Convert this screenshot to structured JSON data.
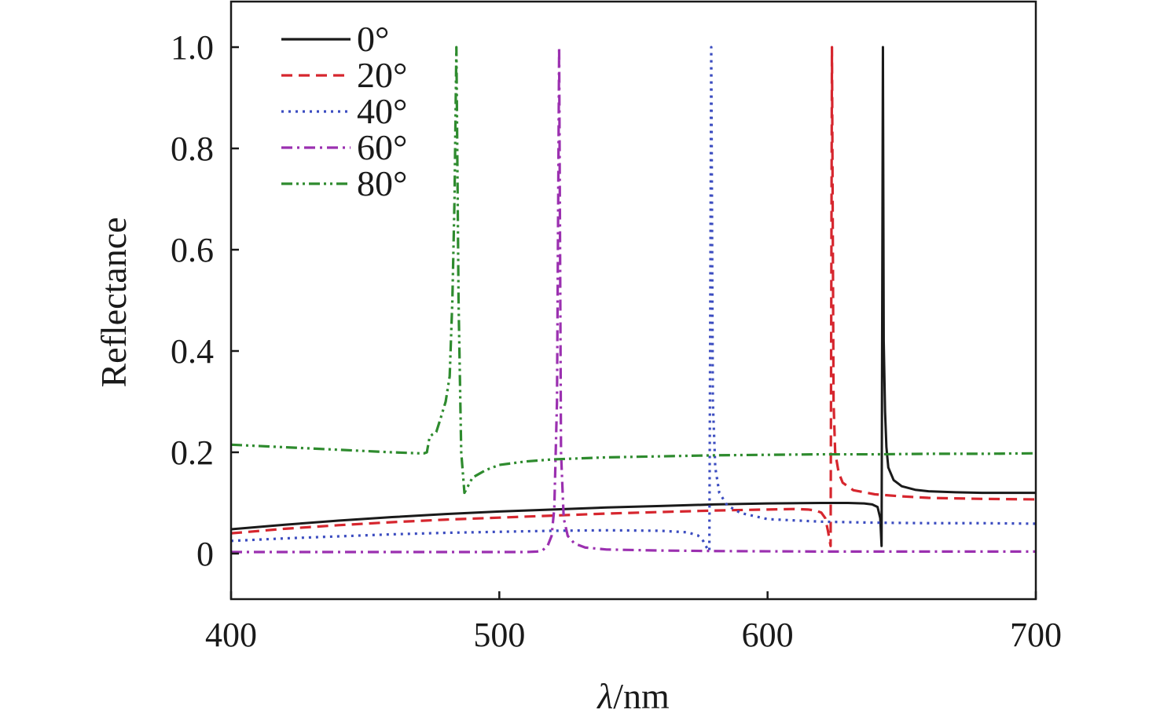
{
  "chart_data": {
    "type": "line",
    "title": "",
    "xlabel_italic": "λ",
    "xlabel_unit": "/nm",
    "ylabel": "Reflectance",
    "xlim": [
      400,
      700
    ],
    "ylim": [
      -0.09,
      1.09
    ],
    "xticks": [
      400,
      500,
      600,
      700
    ],
    "xtick_labels": [
      "400",
      "500",
      "600",
      "700"
    ],
    "yticks": [
      0,
      0.2,
      0.4,
      0.6,
      0.8,
      1.0
    ],
    "ytick_labels": [
      "0",
      "0.2",
      "0.4",
      "0.6",
      "0.8",
      "1.0"
    ],
    "grid": false,
    "legend_position": "top-left",
    "series": [
      {
        "name": "0°",
        "color": "#1a1a1a",
        "dash": "solid",
        "x": [
          400,
          420,
          440,
          460,
          480,
          500,
          520,
          540,
          560,
          580,
          600,
          620,
          630,
          636,
          639,
          641,
          642,
          642.5,
          643,
          643.3,
          643.8,
          644.3,
          645,
          647,
          650,
          655,
          660,
          670,
          680,
          690,
          700
        ],
        "y": [
          0.048,
          0.057,
          0.065,
          0.072,
          0.078,
          0.083,
          0.087,
          0.091,
          0.094,
          0.097,
          0.099,
          0.1,
          0.1,
          0.099,
          0.097,
          0.092,
          0.07,
          0.015,
          1.0,
          0.42,
          0.28,
          0.21,
          0.17,
          0.145,
          0.133,
          0.126,
          0.123,
          0.121,
          0.12,
          0.12,
          0.12
        ]
      },
      {
        "name": "20°",
        "color": "#d6262e",
        "dash": "dashed",
        "x": [
          400,
          420,
          440,
          460,
          480,
          500,
          520,
          540,
          560,
          580,
          600,
          610,
          615,
          618,
          620,
          621.5,
          622.5,
          623.5,
          624,
          624.6,
          625.2,
          626.5,
          628,
          632,
          640,
          650,
          660,
          680,
          700
        ],
        "y": [
          0.04,
          0.049,
          0.056,
          0.062,
          0.067,
          0.071,
          0.075,
          0.079,
          0.082,
          0.085,
          0.087,
          0.088,
          0.087,
          0.085,
          0.081,
          0.07,
          0.045,
          0.015,
          1.0,
          0.3,
          0.2,
          0.16,
          0.14,
          0.125,
          0.117,
          0.113,
          0.11,
          0.108,
          0.107
        ]
      },
      {
        "name": "40°",
        "color": "#3b4cc0",
        "dash": "dotted",
        "x": [
          400,
          420,
          440,
          460,
          480,
          500,
          520,
          540,
          560,
          570,
          574,
          576,
          577.5,
          578.3,
          579,
          579.6,
          580.5,
          582,
          585,
          590,
          600,
          620,
          640,
          660,
          680,
          700
        ],
        "y": [
          0.025,
          0.03,
          0.034,
          0.038,
          0.041,
          0.043,
          0.045,
          0.046,
          0.045,
          0.042,
          0.036,
          0.025,
          0.01,
          0.005,
          1.0,
          0.3,
          0.17,
          0.12,
          0.095,
          0.08,
          0.068,
          0.063,
          0.061,
          0.06,
          0.06,
          0.059
        ]
      },
      {
        "name": "60°",
        "color": "#9b30b0",
        "dash": "dashdot",
        "x": [
          400,
          440,
          480,
          500,
          510,
          514,
          516,
          518,
          519.5,
          520.5,
          521.5,
          522.3,
          523,
          524,
          525.5,
          528,
          532,
          540,
          560,
          580,
          620,
          660,
          700
        ],
        "y": [
          0.003,
          0.003,
          0.003,
          0.003,
          0.003,
          0.004,
          0.006,
          0.015,
          0.035,
          0.09,
          0.3,
          1.0,
          0.2,
          0.07,
          0.035,
          0.02,
          0.012,
          0.008,
          0.006,
          0.005,
          0.004,
          0.004,
          0.004
        ]
      },
      {
        "name": "80°",
        "color": "#2e8b2e",
        "dash": "dashdotdot",
        "x": [
          400,
          420,
          440,
          460,
          470,
          472,
          473,
          474,
          475,
          476.5,
          478,
          480,
          481.5,
          482.5,
          483.3,
          484,
          484.8,
          485.8,
          487,
          490,
          495,
          500,
          510,
          520,
          540,
          560,
          580,
          600,
          620,
          640,
          660,
          680,
          700
        ],
        "y": [
          0.215,
          0.21,
          0.205,
          0.2,
          0.198,
          0.198,
          0.2,
          0.23,
          0.235,
          0.24,
          0.265,
          0.3,
          0.35,
          0.5,
          0.7,
          1.0,
          0.5,
          0.2,
          0.12,
          0.15,
          0.165,
          0.175,
          0.182,
          0.186,
          0.19,
          0.192,
          0.194,
          0.195,
          0.196,
          0.196,
          0.197,
          0.197,
          0.198
        ]
      }
    ]
  }
}
